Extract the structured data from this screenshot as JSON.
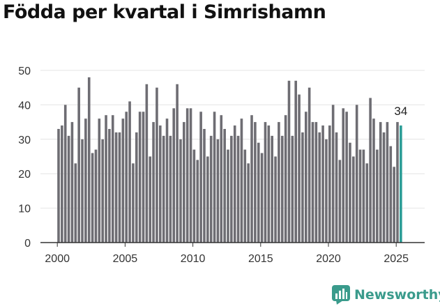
{
  "title": "Födda per kvartal i Simrishamn",
  "brand": {
    "name": "Newsworthy"
  },
  "colors": {
    "bar": "#6e6d73",
    "highlight": "#2a9d96",
    "brand": "#3a9b8c",
    "axis": "#333333",
    "grid": "#e4e4e4"
  },
  "chart_data": {
    "type": "bar",
    "title": "Födda per kvartal i Simrishamn",
    "xlabel": "",
    "ylabel": "",
    "ylim": [
      0,
      50
    ],
    "yticks": [
      0,
      10,
      20,
      30,
      40,
      50
    ],
    "xticks": [
      2000,
      2005,
      2010,
      2015,
      2020,
      2025
    ],
    "grid": true,
    "legend": "none",
    "last_label": "34",
    "start": "2000 Q1",
    "values": [
      33,
      34,
      40,
      31,
      35,
      23,
      45,
      30,
      36,
      48,
      26,
      27,
      36,
      30,
      37,
      33,
      37,
      32,
      32,
      36,
      38,
      41,
      23,
      32,
      38,
      38,
      46,
      25,
      35,
      45,
      34,
      31,
      36,
      31,
      39,
      46,
      30,
      35,
      39,
      39,
      27,
      24,
      38,
      33,
      25,
      31,
      38,
      30,
      37,
      33,
      27,
      31,
      34,
      31,
      36,
      27,
      23,
      37,
      35,
      29,
      26,
      35,
      34,
      31,
      25,
      35,
      31,
      37,
      47,
      31,
      47,
      43,
      32,
      38,
      45,
      35,
      35,
      32,
      34,
      30,
      34,
      40,
      32,
      24,
      39,
      38,
      29,
      25,
      40,
      27,
      27,
      23,
      42,
      36,
      27,
      35,
      32,
      35,
      28,
      22,
      35,
      34
    ]
  }
}
